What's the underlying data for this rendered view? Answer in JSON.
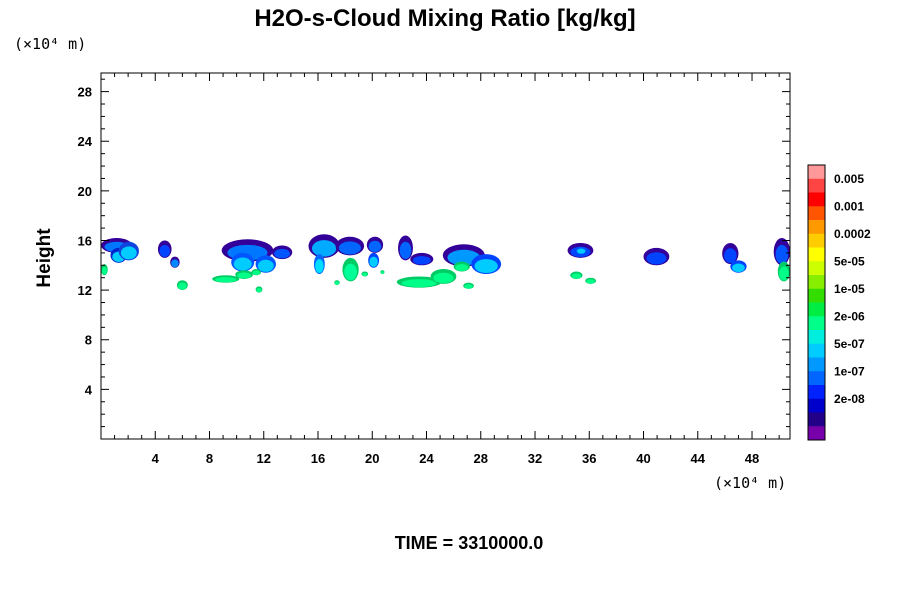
{
  "chart_data": {
    "type": "heatmap",
    "title": "H2O-s-Cloud Mixing Ratio [kg/kg]",
    "xlabel": "",
    "ylabel": "Height",
    "x_unit": "(×10⁴ m)",
    "y_unit": "(×10⁴ m)",
    "xlim": [
      0,
      50.8
    ],
    "ylim": [
      0,
      29.5
    ],
    "xticks": [
      4,
      8,
      12,
      16,
      20,
      24,
      28,
      32,
      36,
      40,
      44,
      48
    ],
    "yticks": [
      4,
      8,
      12,
      16,
      20,
      24,
      28
    ],
    "grid": false,
    "colorbar": {
      "labels": [
        "0.005",
        "0.001",
        "0.0002",
        "5e-05",
        "1e-05",
        "2e-06",
        "5e-07",
        "1e-07",
        "2e-08"
      ],
      "colors": [
        "#ff9999",
        "#ff4444",
        "#ff0000",
        "#ff5500",
        "#ff9900",
        "#ffcc00",
        "#ffff00",
        "#ccff00",
        "#88ee00",
        "#33dd00",
        "#00ee44",
        "#00ff88",
        "#00eedd",
        "#00ccff",
        "#0099ff",
        "#0066ff",
        "#0022ff",
        "#0000cc",
        "#220088",
        "#7700aa"
      ]
    },
    "cloud_blobs": [
      {
        "x": 0.0,
        "w": 2.3,
        "y": 15.0,
        "h": 1.2,
        "core": "#0077ff",
        "edge": "#330099"
      },
      {
        "x": 0.7,
        "w": 1.2,
        "y": 14.2,
        "h": 1.2,
        "core": "#00ccff",
        "edge": "#0022cc"
      },
      {
        "x": 1.3,
        "w": 1.5,
        "y": 14.4,
        "h": 1.5,
        "core": "#00ccff",
        "edge": "#1144dd"
      },
      {
        "x": 0.0,
        "w": 0.5,
        "y": 13.2,
        "h": 0.9,
        "core": "#00ff88",
        "edge": "#00cc66"
      },
      {
        "x": 4.2,
        "w": 1.0,
        "y": 14.6,
        "h": 1.4,
        "core": "#0044ff",
        "edge": "#330099"
      },
      {
        "x": 5.1,
        "w": 0.7,
        "y": 13.8,
        "h": 0.9,
        "core": "#0088ff",
        "edge": "#330099"
      },
      {
        "x": 8.9,
        "w": 3.8,
        "y": 14.3,
        "h": 1.8,
        "core": "#0077ff",
        "edge": "#330099"
      },
      {
        "x": 9.6,
        "w": 1.7,
        "y": 13.5,
        "h": 1.5,
        "core": "#00ccff",
        "edge": "#0055ff"
      },
      {
        "x": 11.4,
        "w": 1.5,
        "y": 13.4,
        "h": 1.4,
        "core": "#00ccff",
        "edge": "#0055ff"
      },
      {
        "x": 12.6,
        "w": 1.5,
        "y": 14.5,
        "h": 1.1,
        "core": "#0055ff",
        "edge": "#330099"
      },
      {
        "x": 15.3,
        "w": 2.3,
        "y": 14.6,
        "h": 1.9,
        "core": "#00aaff",
        "edge": "#330099"
      },
      {
        "x": 15.7,
        "w": 0.8,
        "y": 13.3,
        "h": 1.6,
        "core": "#00ddff",
        "edge": "#0066ff"
      },
      {
        "x": 17.3,
        "w": 2.1,
        "y": 14.8,
        "h": 1.5,
        "core": "#0066ff",
        "edge": "#330099"
      },
      {
        "x": 17.8,
        "w": 1.2,
        "y": 12.7,
        "h": 1.9,
        "core": "#00ff99",
        "edge": "#00cc66"
      },
      {
        "x": 19.6,
        "w": 1.2,
        "y": 15.0,
        "h": 1.3,
        "core": "#0066ff",
        "edge": "#330099"
      },
      {
        "x": 19.7,
        "w": 0.8,
        "y": 13.8,
        "h": 1.2,
        "core": "#00ccff",
        "edge": "#0044ff"
      },
      {
        "x": 21.9,
        "w": 1.1,
        "y": 14.4,
        "h": 2.0,
        "core": "#0066ff",
        "edge": "#330099"
      },
      {
        "x": 22.8,
        "w": 1.7,
        "y": 14.0,
        "h": 1.0,
        "core": "#0044ff",
        "edge": "#330099"
      },
      {
        "x": 25.2,
        "w": 3.1,
        "y": 13.9,
        "h": 1.8,
        "core": "#0099ff",
        "edge": "#330099"
      },
      {
        "x": 27.3,
        "w": 2.2,
        "y": 13.3,
        "h": 1.6,
        "core": "#00ccff",
        "edge": "#0044ff"
      },
      {
        "x": 34.4,
        "w": 1.9,
        "y": 14.6,
        "h": 1.2,
        "core": "#0044ff",
        "edge": "#330099"
      },
      {
        "x": 35.0,
        "w": 0.8,
        "y": 14.9,
        "h": 0.6,
        "core": "#00ccff",
        "edge": "#0055ff"
      },
      {
        "x": 40.0,
        "w": 1.9,
        "y": 14.0,
        "h": 1.4,
        "core": "#0044ff",
        "edge": "#330099"
      },
      {
        "x": 45.8,
        "w": 1.2,
        "y": 14.1,
        "h": 1.7,
        "core": "#0044ff",
        "edge": "#330099"
      },
      {
        "x": 46.4,
        "w": 1.2,
        "y": 13.4,
        "h": 1.0,
        "core": "#00ccff",
        "edge": "#0044ff"
      },
      {
        "x": 49.6,
        "w": 1.2,
        "y": 14.0,
        "h": 2.2,
        "core": "#0055ff",
        "edge": "#330099"
      },
      {
        "x": 49.9,
        "w": 0.9,
        "y": 12.7,
        "h": 1.6,
        "core": "#00ff88",
        "edge": "#00cc66"
      },
      {
        "x": 5.6,
        "w": 0.8,
        "y": 12.0,
        "h": 0.8,
        "core": "#00ff88",
        "edge": "#00cc66"
      },
      {
        "x": 8.2,
        "w": 2.0,
        "y": 12.6,
        "h": 0.6,
        "core": "#00ff88",
        "edge": "#00cc66"
      },
      {
        "x": 9.9,
        "w": 1.3,
        "y": 12.9,
        "h": 0.7,
        "core": "#00ff88",
        "edge": "#00cc66"
      },
      {
        "x": 11.1,
        "w": 0.7,
        "y": 13.2,
        "h": 0.5,
        "core": "#00ff88",
        "edge": "#00cc66"
      },
      {
        "x": 11.4,
        "w": 0.5,
        "y": 11.8,
        "h": 0.5,
        "core": "#00ff88",
        "edge": "#00cc66"
      },
      {
        "x": 19.2,
        "w": 0.5,
        "y": 13.1,
        "h": 0.4,
        "core": "#00ff88",
        "edge": "#00cc66"
      },
      {
        "x": 21.8,
        "w": 3.3,
        "y": 12.2,
        "h": 0.9,
        "core": "#00ff88",
        "edge": "#00cc66"
      },
      {
        "x": 24.3,
        "w": 1.9,
        "y": 12.5,
        "h": 1.2,
        "core": "#00ff88",
        "edge": "#00cc66"
      },
      {
        "x": 26.0,
        "w": 1.2,
        "y": 13.5,
        "h": 0.8,
        "core": "#00ff88",
        "edge": "#00cc66"
      },
      {
        "x": 26.7,
        "w": 0.8,
        "y": 12.1,
        "h": 0.5,
        "core": "#00ff88",
        "edge": "#00cc66"
      },
      {
        "x": 34.6,
        "w": 0.9,
        "y": 12.9,
        "h": 0.6,
        "core": "#00ff88",
        "edge": "#00cc66"
      },
      {
        "x": 35.7,
        "w": 0.8,
        "y": 12.5,
        "h": 0.5,
        "core": "#00ff88",
        "edge": "#00cc66"
      },
      {
        "x": 17.2,
        "w": 0.4,
        "y": 12.4,
        "h": 0.4,
        "core": "#00ff88",
        "edge": "#00cc66"
      },
      {
        "x": 20.6,
        "w": 0.3,
        "y": 13.3,
        "h": 0.3,
        "core": "#00ff88",
        "edge": "#00cc66"
      }
    ]
  },
  "footer": {
    "time_label": "TIME = 3310000.0"
  }
}
